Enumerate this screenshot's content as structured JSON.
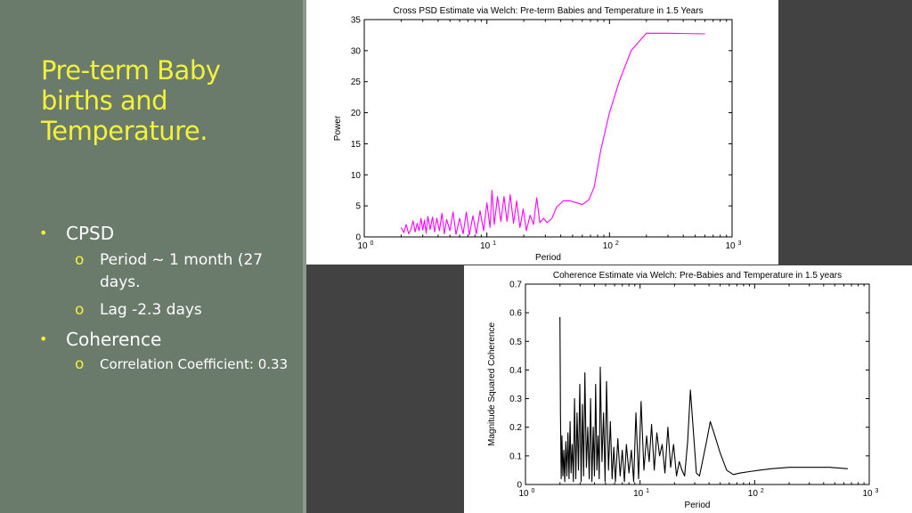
{
  "slide": {
    "title": "Pre-term Baby births and Temperature.",
    "bullets": [
      {
        "label": "CPSD",
        "sub": [
          {
            "text": "Period ~ 1 month (27 days."
          },
          {
            "text": "Lag -2.3 days"
          }
        ]
      },
      {
        "label": "Coherence",
        "sub": [
          {
            "text": "Correlation Coefficient: 0.33"
          }
        ]
      }
    ],
    "bullet_glyph": "•",
    "sub_glyph": "o"
  },
  "colors": {
    "background": "#424242",
    "panel": "#6b7b6b",
    "title": "#f2f23a",
    "text": "#ffffff",
    "cpsd_line": "#ff00ff",
    "coherence_line": "#000000"
  },
  "chart_data": [
    {
      "type": "line",
      "title": "Cross PSD Estimate via Welch: Pre-term Babies and Temperature in 1.5 Years",
      "xlabel": "Period",
      "ylabel": "Power",
      "xscale": "log",
      "xlim": [
        1,
        1000
      ],
      "ylim": [
        0,
        35
      ],
      "yticks": [
        "0",
        "5",
        "10",
        "15",
        "20",
        "25",
        "30",
        "35"
      ],
      "xticks": [
        {
          "base": "10",
          "exp": "0"
        },
        {
          "base": "10",
          "exp": "1"
        },
        {
          "base": "10",
          "exp": "2"
        },
        {
          "base": "10",
          "exp": "3"
        }
      ],
      "grid": false,
      "series": [
        {
          "color": "#ff00ff",
          "x": [
            2,
            2.1,
            2.2,
            2.3,
            2.4,
            2.5,
            2.6,
            2.7,
            2.8,
            2.9,
            3.0,
            3.1,
            3.2,
            3.3,
            3.45,
            3.6,
            3.75,
            3.9,
            4.1,
            4.3,
            4.5,
            4.7,
            5.0,
            5.3,
            5.6,
            6.0,
            6.4,
            6.8,
            7.2,
            7.7,
            8.2,
            8.8,
            9.4,
            10.0,
            10.6,
            11.0,
            11.5,
            12.2,
            13.0,
            13.8,
            14.6,
            15.5,
            16.5,
            17.5,
            18.6,
            19.8,
            21.0,
            22.5,
            24.0,
            25.5,
            27.0,
            29.0,
            31.0,
            34.0,
            37.0,
            42,
            48,
            54,
            60,
            68,
            75,
            85,
            100,
            120,
            150,
            200,
            300,
            600
          ],
          "y": [
            1.5,
            0.7,
            2.0,
            0.5,
            1.2,
            2.6,
            0.8,
            2.2,
            1.0,
            3.0,
            1.1,
            2.7,
            0.6,
            3.3,
            1.2,
            3.2,
            0.8,
            3.0,
            1.0,
            3.8,
            0.5,
            2.8,
            1.0,
            4.0,
            0.4,
            3.0,
            0.5,
            4.0,
            0.3,
            3.4,
            0.5,
            4.2,
            1.0,
            5.5,
            1.5,
            7.5,
            2.0,
            6.5,
            2.5,
            6.5,
            2.5,
            6.8,
            2.2,
            5.8,
            1.5,
            4.5,
            1.0,
            3.5,
            2.0,
            6.3,
            2.3,
            3.0,
            2.3,
            3.0,
            4.8,
            5.8,
            5.8,
            5.5,
            5.2,
            6.0,
            8.0,
            14.0,
            20.0,
            25.0,
            30.0,
            32.8,
            32.8,
            32.7
          ]
        }
      ]
    },
    {
      "type": "line",
      "title": "Coherence Estimate via Welch: Pre-Babies and Temperature in 1.5 years",
      "xlabel": "Period",
      "ylabel": "Magnitude Squared Coherence",
      "xscale": "log",
      "xlim": [
        1,
        1000
      ],
      "ylim": [
        0,
        0.7
      ],
      "yticks": [
        "0",
        "0.1",
        "0.2",
        "0.3",
        "0.4",
        "0.5",
        "0.6",
        "0.7"
      ],
      "xticks": [
        {
          "base": "10",
          "exp": "0"
        },
        {
          "base": "10",
          "exp": "1"
        },
        {
          "base": "10",
          "exp": "2"
        },
        {
          "base": "10",
          "exp": "3"
        }
      ],
      "grid": false,
      "series": [
        {
          "color": "#000000",
          "x": [
            2.0,
            2.02,
            2.05,
            2.08,
            2.12,
            2.16,
            2.2,
            2.25,
            2.3,
            2.35,
            2.4,
            2.45,
            2.5,
            2.56,
            2.62,
            2.68,
            2.75,
            2.82,
            2.9,
            2.98,
            3.06,
            3.14,
            3.22,
            3.3,
            3.4,
            3.5,
            3.6,
            3.7,
            3.8,
            3.9,
            4.0,
            4.1,
            4.2,
            4.3,
            4.4,
            4.5,
            4.65,
            4.8,
            4.95,
            5.1,
            5.3,
            5.5,
            5.7,
            5.9,
            6.1,
            6.4,
            6.7,
            7.0,
            7.3,
            7.6,
            8.0,
            8.4,
            8.8,
            9.2,
            9.7,
            10.2,
            10.8,
            11.4,
            12.0,
            12.6,
            13.3,
            14.0,
            14.8,
            15.6,
            16.5,
            17.5,
            18.5,
            19.6,
            20.8,
            22.0,
            23.2,
            24.5,
            26.0,
            27.5,
            29.0,
            31.0,
            33.0,
            35.0,
            38.0,
            41.0,
            45.0,
            50.0,
            57.0,
            65.0,
            75.0,
            90.0,
            110.0,
            140.0,
            200.0,
            300.0,
            450.0,
            650.0
          ],
          "y": [
            0.585,
            0.25,
            0.02,
            0.17,
            0.03,
            0.12,
            0.01,
            0.15,
            0.03,
            0.18,
            0.02,
            0.22,
            0.04,
            0.14,
            0.01,
            0.3,
            0.02,
            0.25,
            0.05,
            0.35,
            0.01,
            0.28,
            0.03,
            0.39,
            0.06,
            0.2,
            0.02,
            0.3,
            0.01,
            0.2,
            0.03,
            0.35,
            0.05,
            0.17,
            0.02,
            0.41,
            0.08,
            0.25,
            0.01,
            0.36,
            0.05,
            0.22,
            0.02,
            0.13,
            0.01,
            0.16,
            0.03,
            0.12,
            0.01,
            0.14,
            0.04,
            0.12,
            0.01,
            0.25,
            0.02,
            0.29,
            0.05,
            0.17,
            0.08,
            0.21,
            0.05,
            0.18,
            0.1,
            0.14,
            0.04,
            0.2,
            0.06,
            0.14,
            0.03,
            0.08,
            0.05,
            0.03,
            0.15,
            0.33,
            0.2,
            0.04,
            0.03,
            0.08,
            0.15,
            0.22,
            0.17,
            0.11,
            0.05,
            0.035,
            0.04,
            0.045,
            0.05,
            0.055,
            0.06,
            0.06,
            0.06,
            0.055
          ]
        }
      ]
    }
  ]
}
